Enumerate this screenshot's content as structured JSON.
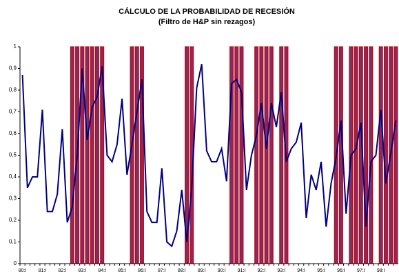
{
  "chart_data": {
    "type": "line",
    "title": "CÁLCULO DE LA PROBABILIDAD DE RECESIÓN",
    "subtitle": "(Filtro de H&P sin rezagos)",
    "categories": [
      "80:I",
      null,
      null,
      null,
      "81:I",
      null,
      null,
      null,
      "82:I",
      null,
      null,
      null,
      "83:I",
      null,
      null,
      null,
      "84:I",
      null,
      null,
      null,
      "85:I",
      null,
      null,
      null,
      "86:I",
      null,
      null,
      null,
      "87:I",
      null,
      null,
      null,
      "88:I",
      null,
      null,
      null,
      "89:I",
      null,
      null,
      null,
      "90:I",
      null,
      null,
      null,
      "91:I",
      null,
      null,
      null,
      "92:I",
      null,
      null,
      null,
      "93:I",
      null,
      null,
      null,
      "94:I",
      null,
      null,
      null,
      "95:I",
      null,
      null,
      null,
      "96:I",
      null,
      null,
      null,
      "97:I",
      null,
      null,
      null,
      "98:I",
      null,
      null,
      null
    ],
    "values": [
      0.87,
      0.35,
      0.4,
      0.4,
      0.71,
      0.24,
      0.24,
      0.32,
      0.62,
      0.19,
      0.26,
      0.5,
      0.9,
      0.57,
      0.72,
      0.77,
      0.91,
      0.5,
      0.47,
      0.55,
      0.76,
      0.41,
      0.55,
      0.7,
      0.85,
      0.24,
      0.19,
      0.19,
      0.44,
      0.1,
      0.08,
      0.15,
      0.34,
      0.1,
      0.35,
      0.81,
      0.92,
      0.52,
      0.47,
      0.47,
      0.53,
      0.38,
      0.83,
      0.85,
      0.79,
      0.34,
      0.5,
      0.59,
      0.74,
      0.53,
      0.74,
      0.63,
      0.79,
      0.47,
      0.53,
      0.56,
      0.65,
      0.21,
      0.41,
      0.34,
      0.47,
      0.17,
      0.37,
      0.49,
      0.66,
      0.23,
      0.5,
      0.53,
      0.65,
      0.17,
      0.47,
      0.5,
      0.71,
      0.37,
      0.51,
      0.66
    ],
    "color": "#000080",
    "bars": [
      0,
      0,
      0,
      0,
      0,
      0,
      0,
      0,
      0,
      0,
      1,
      1,
      1,
      1,
      1,
      1,
      1,
      0,
      0,
      0,
      0,
      0,
      1,
      1,
      1,
      0,
      0,
      0,
      0,
      0,
      0,
      0,
      0,
      1,
      1,
      0,
      0,
      0,
      0,
      0,
      0,
      0,
      1,
      1,
      1,
      0,
      0,
      1,
      1,
      1,
      1,
      0,
      1,
      1,
      0,
      0,
      0,
      0,
      0,
      0,
      0,
      0,
      0,
      1,
      1,
      0,
      1,
      1,
      1,
      1,
      1,
      0,
      1,
      1,
      1,
      1
    ],
    "bar_color": "#7a2f6e",
    "bar_edge": "#d00000",
    "ylim": [
      0,
      1
    ],
    "yticks": [
      0,
      {
        "value": 0.1,
        "label": "0,1"
      },
      {
        "value": 0.2,
        "label": "0,2"
      },
      {
        "value": 0.3,
        "label": "0,3"
      },
      {
        "value": 0.4,
        "label": "0,4"
      },
      {
        "value": 0.5,
        "label": "0,5"
      },
      {
        "value": 0.6,
        "label": "0,6"
      },
      {
        "value": 0.7,
        "label": "0,7"
      },
      {
        "value": 0.8,
        "label": "0,8"
      },
      {
        "value": 0.9,
        "label": "0,9"
      },
      1
    ]
  }
}
